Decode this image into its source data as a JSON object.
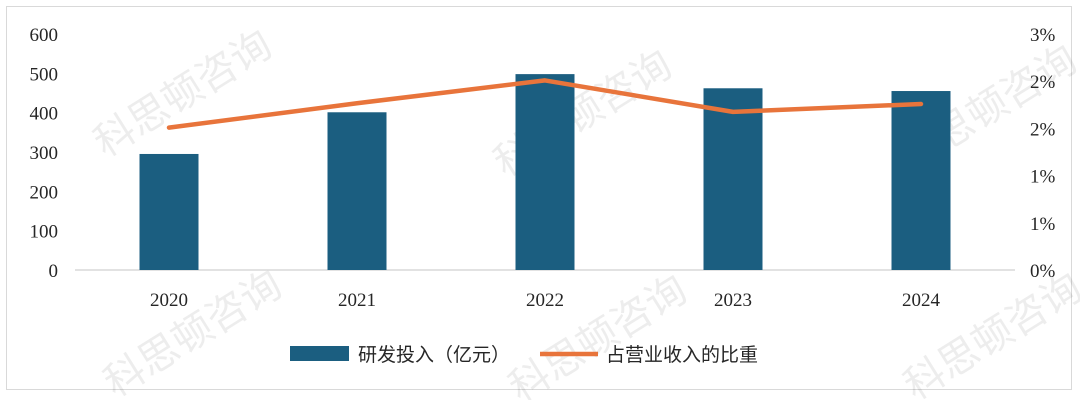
{
  "chart_data": {
    "type": "bar",
    "categories": [
      "2020",
      "2021",
      "2022",
      "2023",
      "2024"
    ],
    "series": [
      {
        "name": "研发投入（亿元）",
        "kind": "bar",
        "axis": "left",
        "color": "#1b5e80",
        "values": [
          295,
          401,
          498,
          462,
          455
        ]
      },
      {
        "name": "占营业收入的比重",
        "kind": "line",
        "axis": "right",
        "color": "#e8743b",
        "values": [
          1.81,
          2.12,
          2.41,
          2.01,
          2.11
        ]
      }
    ],
    "ylim_left": [
      0,
      600
    ],
    "yticks_left": [
      "0",
      "100",
      "200",
      "300",
      "400",
      "500",
      "600"
    ],
    "ylim_right": [
      0,
      3
    ],
    "yticks_right": [
      "0%",
      "1%",
      "1%",
      "2%",
      "2%",
      "3%"
    ],
    "grid": false,
    "legend_position": "bottom"
  },
  "watermark": "科思顿咨询"
}
